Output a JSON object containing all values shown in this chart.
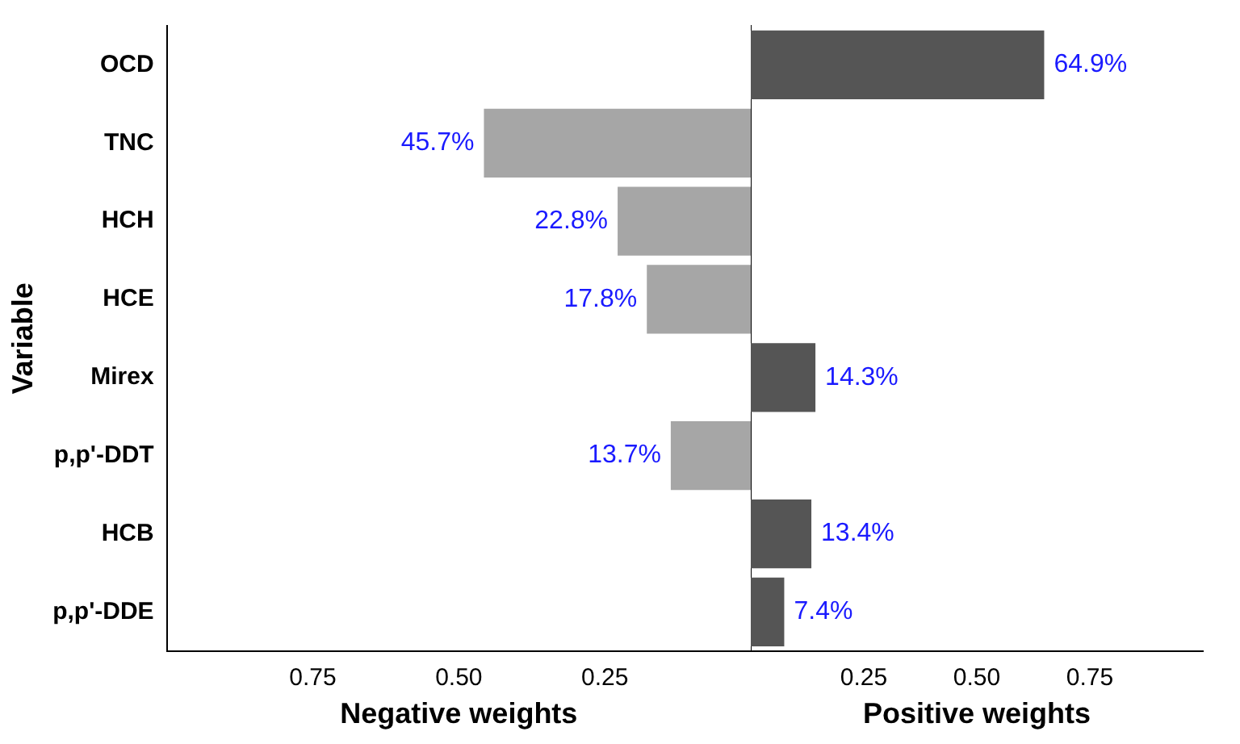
{
  "chart_data": [
    {
      "type": "bar",
      "orientation": "horizontal",
      "xlabel": "Negative weights",
      "ylabel": "Variable",
      "categories": [
        "OCD",
        "TNC",
        "HCH",
        "HCE",
        "Mirex",
        "p,p'-DDT",
        "HCB",
        "p,p'-DDE"
      ],
      "values": [
        null,
        0.457,
        0.228,
        0.178,
        null,
        0.137,
        null,
        null
      ],
      "value_labels": [
        null,
        "45.7%",
        "22.8%",
        "17.8%",
        null,
        "13.7%",
        null,
        null
      ],
      "color": "#a6a6a6",
      "xlim": [
        1,
        0
      ],
      "xticks": [
        {
          "value": 0.75,
          "label": "0.75"
        },
        {
          "value": 0.5,
          "label": "0.50"
        },
        {
          "value": 0.25,
          "label": "0.25"
        }
      ],
      "grid": false,
      "legend": false
    },
    {
      "type": "bar",
      "orientation": "horizontal",
      "xlabel": "Positive weights",
      "tick_labels": "x",
      "values": [
        0.649,
        null,
        null,
        null,
        0.143,
        null,
        0.134,
        0.074
      ],
      "value_labels": [
        "64.9%",
        null,
        null,
        null,
        "14.3%",
        null,
        "13.4%",
        "7.4%"
      ],
      "color": "#555555",
      "xlim": [
        0,
        1
      ],
      "xticks": [
        {
          "value": 0.25,
          "label": "0.25"
        },
        {
          "value": 0.5,
          "label": "0.50"
        },
        {
          "value": 0.75,
          "label": "0.75"
        }
      ],
      "grid": false,
      "legend": false
    }
  ]
}
